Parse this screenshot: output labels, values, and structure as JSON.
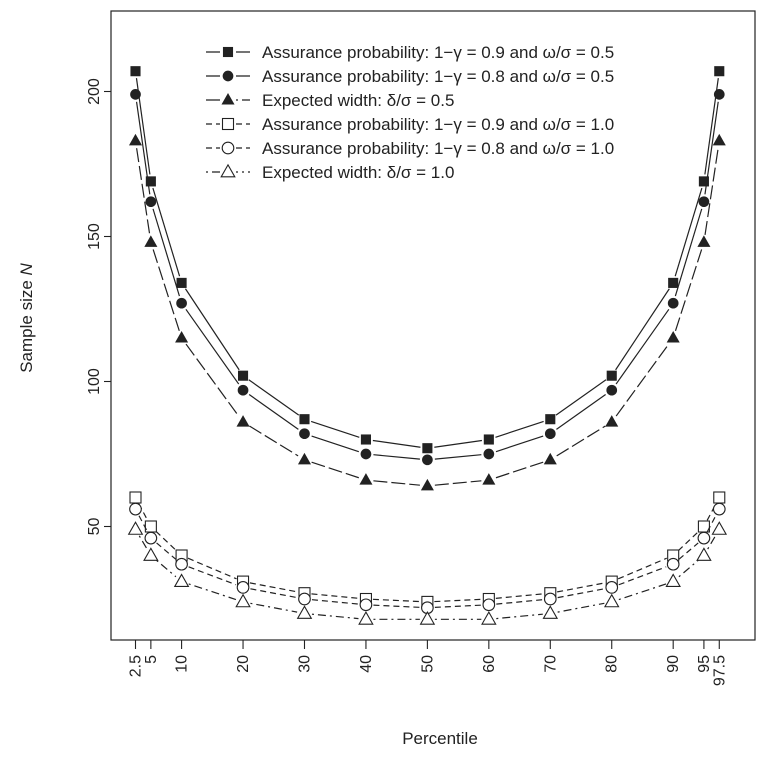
{
  "chart_data": {
    "type": "line",
    "xlabel": "Percentile",
    "ylabel_prefix": "Sample size ",
    "ylabel_var": "N",
    "x": [
      2.5,
      5,
      10,
      20,
      30,
      40,
      50,
      60,
      70,
      80,
      90,
      95,
      97.5
    ],
    "x_tick_labels": [
      "2.5",
      "5",
      "10",
      "20",
      "30",
      "40",
      "50",
      "60",
      "70",
      "80",
      "90",
      "95",
      "97.5"
    ],
    "y_ticks": [
      50,
      100,
      150,
      200
    ],
    "xlim": [
      0,
      100
    ],
    "ylim": [
      0,
      225
    ],
    "grid": false,
    "legend_position": "top",
    "series": [
      {
        "name": "Assurance probability: 1−γ = 0.9 and ω/σ = 0.5",
        "marker": "filled-square",
        "dash": "solid",
        "values": [
          207,
          169,
          134,
          102,
          87,
          80,
          77,
          80,
          87,
          102,
          134,
          169,
          207
        ]
      },
      {
        "name": "Assurance probability: 1−γ = 0.8 and ω/σ = 0.5",
        "marker": "filled-circle",
        "dash": "solid",
        "values": [
          199,
          162,
          127,
          97,
          82,
          75,
          73,
          75,
          82,
          97,
          127,
          162,
          199
        ]
      },
      {
        "name": "Expected width: δ/σ = 0.5",
        "marker": "filled-triangle",
        "dash": "long",
        "values": [
          183,
          148,
          115,
          86,
          73,
          66,
          64,
          66,
          73,
          86,
          115,
          148,
          183
        ]
      },
      {
        "name": "Assurance probability: 1−γ = 0.9 and ω/σ = 1.0",
        "marker": "open-square",
        "dash": "short",
        "values": [
          60,
          50,
          40,
          31,
          27,
          25,
          24,
          25,
          27,
          31,
          40,
          50,
          60
        ]
      },
      {
        "name": "Assurance probability: 1−γ = 0.8 and ω/σ = 1.0",
        "marker": "open-circle",
        "dash": "short",
        "values": [
          56,
          46,
          37,
          29,
          25,
          23,
          22,
          23,
          25,
          29,
          37,
          46,
          56
        ]
      },
      {
        "name": "Expected width: δ/σ = 1.0",
        "marker": "open-triangle",
        "dash": "dotdash",
        "values": [
          49,
          40,
          31,
          24,
          20,
          18,
          18,
          18,
          20,
          24,
          31,
          40,
          49
        ]
      }
    ],
    "colors": {
      "ink": "#222222",
      "background": "#ffffff"
    }
  }
}
